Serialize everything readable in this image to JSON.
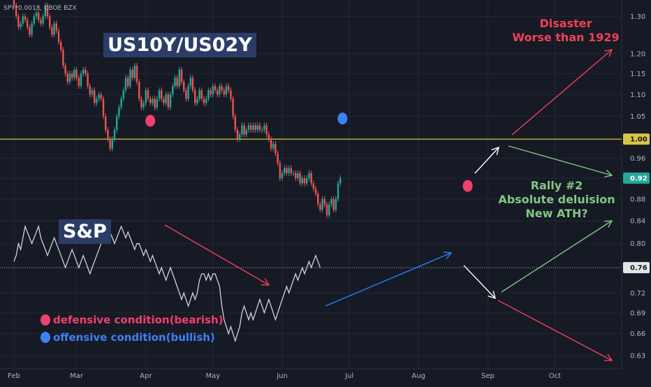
{
  "symbol_label": "SPY*0.0018, CBOE BZX",
  "titles": {
    "ratio": "US10Y/US02Y",
    "sp": "S&P"
  },
  "legend": [
    {
      "label": "defensive condition(bearish)",
      "color": "#f23f70"
    },
    {
      "label": "offensive condition(bullish)",
      "color": "#3b82f6"
    }
  ],
  "notes": {
    "disaster": [
      "Disaster",
      "Worse than 1929"
    ],
    "rally": [
      "Rally #2",
      "Absolute deluision",
      "New ATH?"
    ]
  },
  "colors": {
    "background": "#161a25",
    "up": "#26a69a",
    "down": "#ef5350",
    "line": "#d1d4dc",
    "level": "#c8b53a",
    "red_arrow": "#f23f57",
    "green_arrow": "#81c784",
    "blue_arrow": "#2f7cf6",
    "white_arrow": "#ffffff"
  },
  "chart_data": {
    "type": "line",
    "x_ticks": [
      "Feb",
      "Mar",
      "Apr",
      "May",
      "Jun",
      "Jul",
      "Aug",
      "Sep",
      "Oct"
    ],
    "y_ticks": [
      "1.30",
      "1.20",
      "1.15",
      "1.10",
      "1.05",
      "1.00",
      "0.96",
      "0.92",
      "0.88",
      "0.84",
      "0.80",
      "0.76",
      "0.72",
      "0.69",
      "0.66",
      "0.63"
    ],
    "y_scale": "log",
    "ylim": [
      0.615,
      1.34
    ],
    "price_labels": [
      {
        "value": "1.00",
        "style": "level"
      },
      {
        "value": "0.92",
        "style": "current"
      },
      {
        "value": "0.76",
        "style": "line"
      }
    ],
    "levels": [
      1.0,
      0.76
    ],
    "grid": true,
    "series": [
      {
        "type": "candlestick",
        "name": "US10Y/US02Y",
        "start": "Feb 1",
        "step_days": 1,
        "open_close": [
          [
            1.35,
            1.33
          ],
          [
            1.33,
            1.3
          ],
          [
            1.3,
            1.27
          ],
          [
            1.27,
            1.28
          ],
          [
            1.28,
            1.3
          ],
          [
            1.3,
            1.29
          ],
          [
            1.29,
            1.27
          ],
          [
            1.27,
            1.25
          ],
          [
            1.25,
            1.28
          ],
          [
            1.28,
            1.3
          ],
          [
            1.3,
            1.31
          ],
          [
            1.31,
            1.29
          ],
          [
            1.29,
            1.28
          ],
          [
            1.28,
            1.3
          ],
          [
            1.3,
            1.33
          ],
          [
            1.33,
            1.3
          ],
          [
            1.3,
            1.27
          ],
          [
            1.27,
            1.25
          ],
          [
            1.25,
            1.28
          ],
          [
            1.28,
            1.26
          ],
          [
            1.26,
            1.23
          ],
          [
            1.23,
            1.21
          ],
          [
            1.21,
            1.17
          ],
          [
            1.17,
            1.15
          ],
          [
            1.15,
            1.13
          ],
          [
            1.13,
            1.15
          ],
          [
            1.15,
            1.14
          ],
          [
            1.14,
            1.16
          ],
          [
            1.16,
            1.14
          ],
          [
            1.14,
            1.12
          ],
          [
            1.12,
            1.15
          ],
          [
            1.15,
            1.16
          ],
          [
            1.16,
            1.15
          ],
          [
            1.15,
            1.12
          ],
          [
            1.12,
            1.1
          ],
          [
            1.1,
            1.11
          ],
          [
            1.11,
            1.08
          ],
          [
            1.08,
            1.09
          ],
          [
            1.09,
            1.1
          ],
          [
            1.1,
            1.09
          ],
          [
            1.09,
            1.05
          ],
          [
            1.05,
            1.02
          ],
          [
            1.02,
            1.0
          ],
          [
            1.0,
            0.98
          ],
          [
            0.98,
            1.0
          ],
          [
            1.0,
            1.02
          ],
          [
            1.02,
            1.05
          ],
          [
            1.05,
            1.07
          ],
          [
            1.07,
            1.09
          ],
          [
            1.09,
            1.11
          ],
          [
            1.11,
            1.14
          ],
          [
            1.14,
            1.12
          ],
          [
            1.12,
            1.16
          ],
          [
            1.16,
            1.14
          ],
          [
            1.14,
            1.17
          ],
          [
            1.17,
            1.13
          ],
          [
            1.13,
            1.09
          ],
          [
            1.09,
            1.07
          ],
          [
            1.07,
            1.08
          ],
          [
            1.08,
            1.11
          ],
          [
            1.11,
            1.09
          ],
          [
            1.09,
            1.08
          ],
          [
            1.08,
            1.09
          ],
          [
            1.09,
            1.07
          ],
          [
            1.07,
            1.09
          ],
          [
            1.09,
            1.11
          ],
          [
            1.11,
            1.09
          ],
          [
            1.09,
            1.08
          ],
          [
            1.08,
            1.1
          ],
          [
            1.1,
            1.07
          ],
          [
            1.07,
            1.1
          ],
          [
            1.1,
            1.12
          ],
          [
            1.12,
            1.14
          ],
          [
            1.14,
            1.12
          ],
          [
            1.12,
            1.16
          ],
          [
            1.16,
            1.13
          ],
          [
            1.13,
            1.11
          ],
          [
            1.11,
            1.09
          ],
          [
            1.09,
            1.12
          ],
          [
            1.12,
            1.14
          ],
          [
            1.14,
            1.11
          ],
          [
            1.11,
            1.08
          ],
          [
            1.08,
            1.09
          ],
          [
            1.09,
            1.11
          ],
          [
            1.11,
            1.09
          ],
          [
            1.09,
            1.08
          ],
          [
            1.08,
            1.09
          ],
          [
            1.09,
            1.11
          ],
          [
            1.11,
            1.1
          ],
          [
            1.1,
            1.12
          ],
          [
            1.12,
            1.11
          ],
          [
            1.11,
            1.1
          ],
          [
            1.1,
            1.12
          ],
          [
            1.12,
            1.11
          ],
          [
            1.11,
            1.1
          ],
          [
            1.1,
            1.12
          ],
          [
            1.12,
            1.11
          ],
          [
            1.11,
            1.09
          ],
          [
            1.09,
            1.05
          ],
          [
            1.05,
            1.02
          ],
          [
            1.02,
            1.0
          ],
          [
            1.0,
            1.01
          ],
          [
            1.01,
            1.03
          ],
          [
            1.03,
            1.01
          ],
          [
            1.01,
            1.02
          ],
          [
            1.02,
            1.03
          ],
          [
            1.03,
            1.02
          ],
          [
            1.02,
            1.03
          ],
          [
            1.03,
            1.02
          ],
          [
            1.02,
            1.03
          ],
          [
            1.03,
            1.02
          ],
          [
            1.02,
            1.02
          ],
          [
            1.02,
            1.03
          ],
          [
            1.03,
            1.01
          ],
          [
            1.01,
            1.0
          ],
          [
            1.0,
            0.98
          ],
          [
            0.98,
            0.99
          ],
          [
            0.99,
            0.97
          ],
          [
            0.97,
            0.95
          ],
          [
            0.95,
            0.92
          ],
          [
            0.92,
            0.93
          ],
          [
            0.93,
            0.94
          ],
          [
            0.94,
            0.93
          ],
          [
            0.93,
            0.94
          ],
          [
            0.94,
            0.93
          ],
          [
            0.93,
            0.93
          ],
          [
            0.93,
            0.92
          ],
          [
            0.92,
            0.93
          ],
          [
            0.93,
            0.91
          ],
          [
            0.91,
            0.92
          ],
          [
            0.92,
            0.91
          ],
          [
            0.91,
            0.92
          ],
          [
            0.92,
            0.93
          ],
          [
            0.93,
            0.91
          ],
          [
            0.91,
            0.9
          ],
          [
            0.9,
            0.89
          ],
          [
            0.89,
            0.87
          ],
          [
            0.87,
            0.86
          ],
          [
            0.86,
            0.88
          ],
          [
            0.88,
            0.87
          ],
          [
            0.87,
            0.85
          ],
          [
            0.85,
            0.87
          ],
          [
            0.87,
            0.88
          ],
          [
            0.88,
            0.86
          ],
          [
            0.86,
            0.88
          ],
          [
            0.88,
            0.91
          ],
          [
            0.91,
            0.92
          ]
        ]
      },
      {
        "type": "line",
        "name": "S&P",
        "start": "Feb 1",
        "step_days": 1,
        "values": [
          0.77,
          0.78,
          0.8,
          0.79,
          0.81,
          0.83,
          0.82,
          0.81,
          0.8,
          0.81,
          0.82,
          0.83,
          0.81,
          0.8,
          0.79,
          0.78,
          0.79,
          0.8,
          0.81,
          0.8,
          0.79,
          0.78,
          0.77,
          0.76,
          0.77,
          0.78,
          0.79,
          0.78,
          0.77,
          0.76,
          0.77,
          0.78,
          0.77,
          0.76,
          0.75,
          0.76,
          0.77,
          0.78,
          0.79,
          0.8,
          0.81,
          0.82,
          0.81,
          0.82,
          0.81,
          0.8,
          0.81,
          0.82,
          0.83,
          0.82,
          0.81,
          0.82,
          0.81,
          0.8,
          0.79,
          0.8,
          0.8,
          0.79,
          0.78,
          0.79,
          0.78,
          0.77,
          0.78,
          0.77,
          0.76,
          0.75,
          0.76,
          0.75,
          0.74,
          0.75,
          0.76,
          0.75,
          0.74,
          0.73,
          0.72,
          0.71,
          0.72,
          0.71,
          0.7,
          0.71,
          0.72,
          0.71,
          0.72,
          0.74,
          0.75,
          0.75,
          0.74,
          0.75,
          0.74,
          0.75,
          0.75,
          0.74,
          0.73,
          0.7,
          0.68,
          0.67,
          0.66,
          0.67,
          0.66,
          0.65,
          0.66,
          0.67,
          0.69,
          0.7,
          0.69,
          0.68,
          0.69,
          0.68,
          0.69,
          0.7,
          0.71,
          0.7,
          0.69,
          0.7,
          0.71,
          0.7,
          0.69,
          0.68,
          0.69,
          0.7,
          0.71,
          0.72,
          0.73,
          0.72,
          0.73,
          0.74,
          0.75,
          0.74,
          0.75,
          0.76,
          0.75,
          0.76,
          0.77,
          0.76,
          0.77,
          0.78,
          0.77,
          0.76
        ]
      }
    ],
    "markers": [
      {
        "date": "Apr 3",
        "value": 1.04,
        "condition": "defensive"
      },
      {
        "date": "Jun 28",
        "value": 1.045,
        "condition": "offensive"
      },
      {
        "date": "Aug 23",
        "value": 0.905,
        "condition": "defensive"
      }
    ]
  }
}
